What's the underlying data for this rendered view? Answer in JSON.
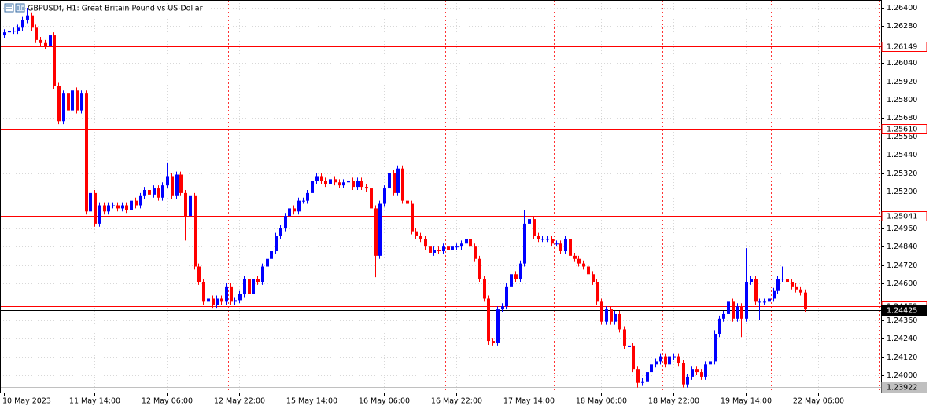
{
  "header": {
    "title": "GBPUSDf, H1:  Great Britain Pound vs US Dollar"
  },
  "chart_data": {
    "type": "candlestick",
    "categories": [
      "10 May 2023",
      null,
      null,
      null,
      null,
      null,
      null,
      null,
      null,
      null,
      null,
      null,
      null,
      null,
      null,
      null,
      null,
      null,
      null,
      null,
      "11 May 14:00",
      null,
      null,
      null,
      null,
      null,
      null,
      null,
      null,
      null,
      null,
      null,
      null,
      null,
      null,
      null,
      "12 May 06:00",
      null,
      null,
      null,
      null,
      null,
      null,
      null,
      null,
      null,
      null,
      null,
      null,
      null,
      null,
      null,
      "12 May 22:00",
      null,
      null,
      null,
      null,
      null,
      null,
      null,
      null,
      null,
      null,
      null,
      null,
      null,
      null,
      null,
      "15 May 14:00",
      null,
      null,
      null,
      null,
      null,
      null,
      null,
      null,
      null,
      null,
      null,
      null,
      null,
      null,
      null,
      "16 May 06:00",
      null,
      null,
      null,
      null,
      null,
      null,
      null,
      null,
      null,
      null,
      null,
      null,
      null,
      null,
      null,
      "16 May 22:00",
      null,
      null,
      null,
      null,
      null,
      null,
      null,
      null,
      null,
      null,
      null,
      null,
      null,
      null,
      null,
      "17 May 14:00",
      null,
      null,
      null,
      null,
      null,
      null,
      null,
      null,
      null,
      null,
      null,
      null,
      null,
      null,
      null,
      "18 May 06:00",
      null,
      null,
      null,
      null,
      null,
      null,
      null,
      null,
      null,
      null,
      null,
      null,
      null,
      null,
      null,
      "18 May 22:00",
      null,
      null,
      null,
      null,
      null,
      null,
      null,
      null,
      null,
      null,
      null,
      null,
      null,
      null,
      null,
      "19 May 14:00",
      null,
      null,
      null,
      null,
      null,
      null,
      null,
      null,
      null,
      null,
      null,
      null,
      null,
      null,
      null,
      "22 May 06:00",
      null
    ],
    "open": [
      1.2622,
      1.2624,
      1.2625,
      1.2625,
      1.2627,
      1.2632,
      1.2635,
      1.2627,
      1.2619,
      1.2617,
      1.2615,
      1.2622,
      1.2589,
      1.2566,
      1.2584,
      1.2573,
      1.2586,
      1.2573,
      1.2584,
      1.2507,
      1.2519,
      1.2499,
      1.2511,
      1.2507,
      1.2511,
      1.2511,
      1.2509,
      1.2511,
      1.2508,
      1.2514,
      1.2511,
      1.2517,
      1.2521,
      1.2518,
      1.2522,
      1.2516,
      1.2524,
      1.253,
      1.2517,
      1.2531,
      1.2519,
      1.2504,
      1.2517,
      1.2471,
      1.2461,
      1.2448,
      1.245,
      1.2446,
      1.245,
      1.2448,
      1.2458,
      1.2448,
      1.2449,
      1.2453,
      1.2463,
      1.2453,
      1.2463,
      1.2461,
      1.2471,
      1.2476,
      1.2481,
      1.2491,
      1.2496,
      1.2504,
      1.2509,
      1.2507,
      1.2514,
      1.2514,
      1.2519,
      1.2527,
      1.253,
      1.2527,
      1.2525,
      1.2528,
      1.2526,
      1.2524,
      1.2526,
      1.2527,
      1.2523,
      1.2527,
      1.2523,
      1.2522,
      1.2509,
      1.2478,
      1.2512,
      1.2522,
      1.2532,
      1.2519,
      1.2535,
      1.2514,
      1.2512,
      1.2494,
      1.2491,
      1.2489,
      1.2484,
      1.248,
      1.2482,
      1.2481,
      1.2484,
      1.2482,
      1.2484,
      1.2484,
      1.2486,
      1.2489,
      1.2484,
      1.2476,
      1.2463,
      1.245,
      1.2422,
      1.2421,
      1.2443,
      1.2445,
      1.2458,
      1.2466,
      1.2463,
      1.2473,
      1.2499,
      1.2502,
      1.2491,
      1.2489,
      1.2489,
      1.2489,
      1.2486,
      1.2486,
      1.2481,
      1.2489,
      1.2478,
      1.2476,
      1.2473,
      1.2471,
      1.2466,
      1.2461,
      1.2448,
      1.2435,
      1.2443,
      1.2435,
      1.244,
      1.243,
      1.2419,
      1.2419,
      1.2404,
      1.2395,
      1.2396,
      1.2402,
      1.2407,
      1.2409,
      1.2412,
      1.2407,
      1.2412,
      1.2412,
      1.2408,
      1.2394,
      1.2399,
      1.2404,
      1.2402,
      1.2399,
      1.2407,
      1.2409,
      1.2427,
      1.2437,
      1.244,
      1.2448,
      1.2437,
      1.2445,
      1.2437,
      1.2461,
      1.2463,
      1.2448,
      1.2448,
      1.2448,
      1.245,
      1.2455,
      1.2463,
      1.2463,
      1.2461,
      1.2458,
      1.2456,
      1.2454,
      null,
      null,
      null,
      null
    ],
    "high": [
      1.2626,
      1.2627,
      1.2627,
      1.2629,
      1.2634,
      1.264,
      1.2637,
      1.2629,
      1.2621,
      1.2619,
      1.2624,
      1.2624,
      1.2591,
      1.2586,
      1.2586,
      1.2615,
      1.2588,
      1.2586,
      1.2586,
      1.2521,
      1.2521,
      1.2513,
      1.2513,
      1.2513,
      1.2513,
      1.2513,
      1.2513,
      1.2513,
      1.2516,
      1.2516,
      1.2519,
      1.2523,
      1.2523,
      1.2524,
      1.2524,
      1.2526,
      1.2539,
      1.2532,
      1.2533,
      1.2533,
      1.2521,
      1.2519,
      1.2519,
      1.2473,
      1.2463,
      1.2452,
      1.2452,
      1.2452,
      1.2452,
      1.246,
      1.246,
      1.2451,
      1.2455,
      1.2465,
      1.2465,
      1.2465,
      1.2465,
      1.2473,
      1.2478,
      1.2483,
      1.2493,
      1.2498,
      1.2506,
      1.2511,
      1.2511,
      1.2516,
      1.2516,
      1.2521,
      1.2529,
      1.2532,
      1.2532,
      1.2529,
      1.253,
      1.253,
      1.2528,
      1.2528,
      1.2529,
      1.2529,
      1.2529,
      1.2529,
      1.2525,
      1.2524,
      1.2511,
      1.2514,
      1.2524,
      1.2545,
      1.2534,
      1.2537,
      1.2537,
      1.2516,
      1.2514,
      1.2496,
      1.2493,
      1.2491,
      1.2486,
      1.2484,
      1.2484,
      1.2486,
      1.2486,
      1.2486,
      1.2486,
      1.2488,
      1.2491,
      1.2491,
      1.2486,
      1.2478,
      1.2465,
      1.2452,
      1.2424,
      1.2445,
      1.2447,
      1.246,
      1.2468,
      1.2468,
      1.2475,
      1.2508,
      1.2504,
      1.2504,
      1.2493,
      1.2491,
      1.2491,
      1.2491,
      1.2488,
      1.2488,
      1.2491,
      1.2491,
      1.248,
      1.2478,
      1.2475,
      1.2473,
      1.2468,
      1.2463,
      1.245,
      1.2445,
      1.2445,
      1.2442,
      1.2442,
      1.2432,
      1.2421,
      1.2421,
      1.2406,
      1.2398,
      1.2404,
      1.2409,
      1.2411,
      1.2414,
      1.2414,
      1.2414,
      1.2414,
      1.2414,
      1.241,
      1.2401,
      1.2406,
      1.2406,
      1.2404,
      1.2409,
      1.2411,
      1.2429,
      1.2439,
      1.2442,
      1.246,
      1.245,
      1.2447,
      1.2447,
      1.2483,
      1.2465,
      1.2465,
      1.245,
      1.245,
      1.2452,
      1.2457,
      1.2465,
      1.2471,
      1.2465,
      1.2463,
      1.246,
      1.2458,
      1.2456,
      null,
      null,
      null,
      null
    ],
    "low": [
      1.262,
      1.2622,
      1.2623,
      1.2623,
      1.2625,
      1.263,
      1.2625,
      1.2617,
      1.2615,
      1.2613,
      1.2613,
      1.2587,
      1.2564,
      1.2564,
      1.2571,
      1.2571,
      1.2571,
      1.2571,
      1.2505,
      1.2505,
      1.2497,
      1.2497,
      1.2505,
      1.2505,
      1.2509,
      1.2507,
      1.2507,
      1.2506,
      1.2506,
      1.2509,
      1.2509,
      1.2515,
      1.2516,
      1.2516,
      1.2514,
      1.2514,
      1.2522,
      1.2515,
      1.2515,
      1.2517,
      1.2488,
      1.2502,
      1.2469,
      1.2459,
      1.2446,
      1.2446,
      1.2444,
      1.2444,
      1.2446,
      1.2446,
      1.2446,
      1.2446,
      1.2447,
      1.2451,
      1.2451,
      1.2451,
      1.2459,
      1.2459,
      1.2469,
      1.2474,
      1.2479,
      1.2489,
      1.2494,
      1.2502,
      1.2505,
      1.2505,
      1.2512,
      1.2512,
      1.2517,
      1.2525,
      1.2525,
      1.2523,
      1.2523,
      1.2524,
      1.2522,
      1.2522,
      1.2524,
      1.2521,
      1.2521,
      1.2521,
      1.252,
      1.2507,
      1.2464,
      1.2476,
      1.251,
      1.252,
      1.2517,
      1.2517,
      1.2512,
      1.251,
      1.2492,
      1.2489,
      1.2487,
      1.2482,
      1.2478,
      1.2478,
      1.2479,
      1.2479,
      1.248,
      1.248,
      1.2482,
      1.2482,
      1.2484,
      1.2482,
      1.2474,
      1.2461,
      1.2448,
      1.242,
      1.2419,
      1.2419,
      1.2441,
      1.2443,
      1.2456,
      1.2461,
      1.2461,
      1.2471,
      1.2497,
      1.2489,
      1.2487,
      1.2487,
      1.2487,
      1.2484,
      1.2484,
      1.2479,
      1.2479,
      1.2476,
      1.2474,
      1.2471,
      1.2469,
      1.2464,
      1.2459,
      1.2446,
      1.2433,
      1.2433,
      1.2433,
      1.2433,
      1.2428,
      1.2417,
      1.2417,
      1.2402,
      1.2392,
      1.2393,
      1.2394,
      1.24,
      1.2405,
      1.2407,
      1.2405,
      1.2405,
      1.241,
      1.2406,
      1.2392,
      1.2392,
      1.2397,
      1.24,
      1.2397,
      1.2397,
      1.2405,
      1.2407,
      1.2425,
      1.2435,
      1.2438,
      1.2435,
      1.2435,
      1.2425,
      1.2435,
      1.2459,
      1.2446,
      1.2436,
      1.2446,
      1.2446,
      1.2448,
      1.2453,
      1.2461,
      1.2459,
      1.2456,
      1.2454,
      1.2452,
      1.2441,
      null,
      null,
      null,
      null
    ],
    "close": [
      1.2624,
      1.2625,
      1.2625,
      1.2627,
      1.2632,
      1.2635,
      1.2627,
      1.2619,
      1.2617,
      1.2615,
      1.2622,
      1.2589,
      1.2566,
      1.2584,
      1.2573,
      1.2586,
      1.2573,
      1.2584,
      1.2507,
      1.2519,
      1.2499,
      1.2511,
      1.2507,
      1.2511,
      1.2511,
      1.2509,
      1.2511,
      1.2508,
      1.2514,
      1.2511,
      1.2517,
      1.2521,
      1.2518,
      1.2522,
      1.2516,
      1.2524,
      1.253,
      1.2517,
      1.2531,
      1.2519,
      1.2504,
      1.2517,
      1.2471,
      1.2461,
      1.2448,
      1.245,
      1.2446,
      1.245,
      1.2448,
      1.2458,
      1.2448,
      1.2449,
      1.2453,
      1.2463,
      1.2453,
      1.2463,
      1.2461,
      1.2471,
      1.2476,
      1.2481,
      1.2491,
      1.2496,
      1.2504,
      1.2509,
      1.2507,
      1.2514,
      1.2514,
      1.2519,
      1.2527,
      1.253,
      1.2527,
      1.2525,
      1.2528,
      1.2526,
      1.2524,
      1.2526,
      1.2527,
      1.2523,
      1.2527,
      1.2523,
      1.2522,
      1.2509,
      1.2478,
      1.2512,
      1.2522,
      1.2532,
      1.2519,
      1.2535,
      1.2514,
      1.2512,
      1.2494,
      1.2491,
      1.2489,
      1.2484,
      1.248,
      1.2482,
      1.2481,
      1.2484,
      1.2482,
      1.2484,
      1.2484,
      1.2486,
      1.2489,
      1.2484,
      1.2476,
      1.2463,
      1.245,
      1.2422,
      1.2421,
      1.2443,
      1.2445,
      1.2458,
      1.2466,
      1.2463,
      1.2473,
      1.2499,
      1.2502,
      1.2491,
      1.2489,
      1.2489,
      1.2489,
      1.2486,
      1.2486,
      1.2481,
      1.2489,
      1.2478,
      1.2476,
      1.2473,
      1.2471,
      1.2466,
      1.2461,
      1.2448,
      1.2435,
      1.2443,
      1.2435,
      1.244,
      1.243,
      1.2419,
      1.2419,
      1.2404,
      1.2395,
      1.2396,
      1.2402,
      1.2407,
      1.2409,
      1.2412,
      1.2407,
      1.2412,
      1.2412,
      1.2408,
      1.2394,
      1.2399,
      1.2404,
      1.2402,
      1.2399,
      1.2407,
      1.2409,
      1.2427,
      1.2437,
      1.244,
      1.2448,
      1.2437,
      1.2445,
      1.2437,
      1.2461,
      1.2463,
      1.2448,
      1.2448,
      1.2448,
      1.245,
      1.2455,
      1.2463,
      1.2463,
      1.2461,
      1.2458,
      1.2456,
      1.2454,
      1.2443,
      null,
      null,
      null,
      null
    ],
    "up_color": "#0000ff",
    "down_color": "#ff0000",
    "ylim": [
      1.23887,
      1.26451
    ],
    "yticks": [
      {
        "value": 1.264,
        "label": "1.26400"
      },
      {
        "value": 1.2628,
        "label": "1.26280"
      },
      {
        "value": 1.2604,
        "label": "1.26040"
      },
      {
        "value": 1.2592,
        "label": "1.25920"
      },
      {
        "value": 1.258,
        "label": "1.25800"
      },
      {
        "value": 1.2568,
        "label": "1.25680"
      },
      {
        "value": 1.2556,
        "label": "1.25560"
      },
      {
        "value": 1.2544,
        "label": "1.25440"
      },
      {
        "value": 1.2532,
        "label": "1.25320"
      },
      {
        "value": 1.252,
        "label": "1.25200"
      },
      {
        "value": 1.2496,
        "label": "1.24960"
      },
      {
        "value": 1.2484,
        "label": "1.24840"
      },
      {
        "value": 1.2472,
        "label": "1.24720"
      },
      {
        "value": 1.246,
        "label": "1.24600"
      },
      {
        "value": 1.2436,
        "label": "1.24360"
      },
      {
        "value": 1.2424,
        "label": "1.24240"
      },
      {
        "value": 1.2412,
        "label": "1.24120"
      },
      {
        "value": 1.24,
        "label": "1.24000"
      }
    ],
    "grid": true,
    "levels": [
      {
        "value": 1.26149,
        "color": "#ff0000"
      },
      {
        "value": 1.2561,
        "label": "1.25610",
        "color": "#ff0000"
      },
      {
        "value": 1.25041,
        "color": "#ff0000"
      },
      {
        "value": 1.24452,
        "color": "#ff0000"
      },
      {
        "value": 1.24425,
        "color": "#000000"
      },
      {
        "value": 1.23922,
        "color": "#c0c0c0"
      }
    ]
  }
}
